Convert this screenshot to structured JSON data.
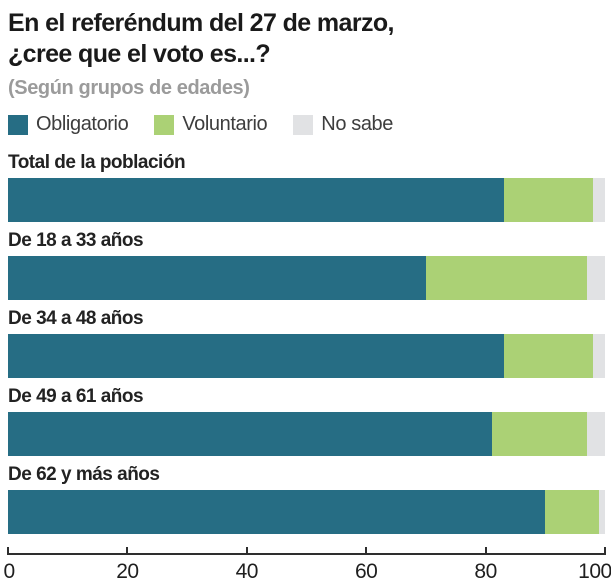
{
  "header": {
    "title_line1": "En el referéndum del 27 de marzo,",
    "title_line2": "¿cree que el voto es...?",
    "subtitle": "(Según grupos de edades)"
  },
  "legend": [
    {
      "label": "Obligatorio",
      "color": "#266d84"
    },
    {
      "label": "Voluntario",
      "color": "#abd175"
    },
    {
      "label": "No sabe",
      "color": "#e1e2e4"
    }
  ],
  "colors": {
    "obligatorio": "#266d84",
    "voluntario": "#abd175",
    "no_sabe": "#e1e2e4",
    "title_text": "#1a1a1a",
    "subtitle_text": "#9b9b9b",
    "axis": "#2e2e2e"
  },
  "chart_data": {
    "type": "bar",
    "orientation": "horizontal",
    "stacked": true,
    "title": "En el referéndum del 27 de marzo, ¿cree que el voto es...?",
    "subtitle": "(Según grupos de edades)",
    "legend_position": "top",
    "grid": false,
    "xlim": [
      0,
      100
    ],
    "x_ticks": [
      0,
      20,
      40,
      60,
      80,
      100
    ],
    "x_tick_labels": [
      "0",
      "20",
      "40",
      "60",
      "80",
      "100"
    ],
    "categories": [
      "Total de la población",
      "De 18 a 33 años",
      "De 34 a 48 años",
      "De 49 a 61 años",
      "De 62 y más años"
    ],
    "series": [
      {
        "name": "Obligatorio",
        "color": "#266d84",
        "values": [
          83,
          70,
          83,
          81,
          90
        ]
      },
      {
        "name": "Voluntario",
        "color": "#abd175",
        "values": [
          15,
          27,
          15,
          16,
          9
        ]
      },
      {
        "name": "No sabe",
        "color": "#e1e2e4",
        "values": [
          2,
          3,
          2,
          3,
          1
        ]
      }
    ]
  }
}
